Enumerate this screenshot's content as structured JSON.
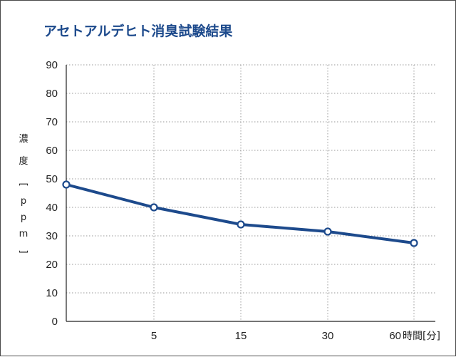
{
  "chart_data": {
    "type": "line",
    "title": "アセトアルデヒト消臭試験結果",
    "ylabel_chars": [
      "濃",
      "度",
      "[",
      "p",
      "p",
      "m",
      "]"
    ],
    "xlabel": "時間[分]",
    "categories": [
      "0",
      "5",
      "15",
      "30",
      "60"
    ],
    "tick_labels": [
      "",
      "5",
      "15",
      "30",
      "60"
    ],
    "yticks": [
      "0",
      "10",
      "20",
      "30",
      "40",
      "50",
      "60",
      "70",
      "80",
      "90"
    ],
    "ylim": [
      0,
      90
    ],
    "values": [
      48,
      40,
      34,
      31.5,
      27.5
    ],
    "grid": true,
    "line_color": "#1d4a8c"
  }
}
